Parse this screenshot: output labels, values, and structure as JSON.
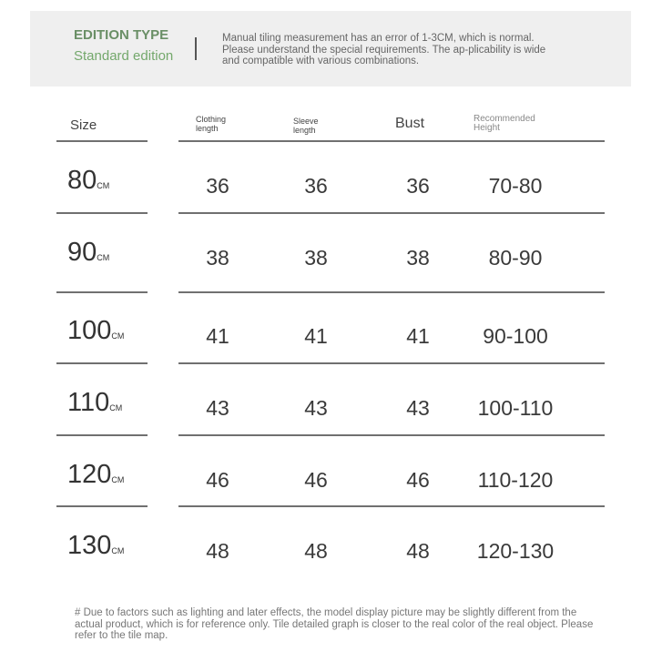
{
  "header": {
    "edition_label": "EDITION TYPE",
    "edition_value": "Standard edition",
    "note": "Manual tiling measurement has an error of 1-3CM, which is normal. Please understand the special requirements. The ap-plicability is wide and compatible with various combinations."
  },
  "table": {
    "columns": [
      "Size",
      "Clothing length",
      "Sleeve length",
      "Bust",
      "Recommended Height"
    ],
    "unit": "CM",
    "rows": [
      {
        "size": "80",
        "clothing": "36",
        "sleeve": "36",
        "bust": "36",
        "height": "70-80"
      },
      {
        "size": "90",
        "clothing": "38",
        "sleeve": "38",
        "bust": "38",
        "height": "80-90"
      },
      {
        "size": "100",
        "clothing": "41",
        "sleeve": "41",
        "bust": "41",
        "height": "90-100"
      },
      {
        "size": "110",
        "clothing": "43",
        "sleeve": "43",
        "bust": "43",
        "height": "100-110"
      },
      {
        "size": "120",
        "clothing": "46",
        "sleeve": "46",
        "bust": "46",
        "height": "110-120"
      },
      {
        "size": "130",
        "clothing": "48",
        "sleeve": "48",
        "bust": "48",
        "height": "120-130"
      }
    ]
  },
  "footer": "# Due to factors such as lighting and later effects, the model display picture may be slightly different from the actual product, which is for reference only. Tile detailed graph is closer to the real color of the real object. Please refer to the tile map."
}
